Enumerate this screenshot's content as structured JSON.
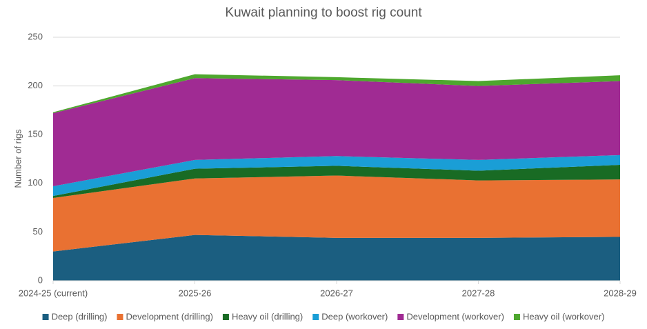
{
  "chart_data": {
    "type": "stacked-area",
    "title": "Kuwait planning to boost rig count",
    "y_label": "Number of rigs",
    "categories": [
      "2024-25 (current)",
      "2025-26",
      "2026-27",
      "2027-28",
      "2028-29"
    ],
    "series": [
      {
        "name": "Deep (drilling)",
        "color": "#1b5e80",
        "values": [
          30,
          47,
          44,
          44,
          45
        ]
      },
      {
        "name": "Development (drilling)",
        "color": "#e97132",
        "values": [
          55,
          58,
          64,
          59,
          59
        ]
      },
      {
        "name": "Heavy oil (drilling)",
        "color": "#196b24",
        "values": [
          2,
          10,
          10,
          10,
          15
        ]
      },
      {
        "name": "Deep (workover)",
        "color": "#1a9ed6",
        "values": [
          10,
          9,
          10,
          11,
          10
        ]
      },
      {
        "name": "Development (workover)",
        "color": "#a02b93",
        "values": [
          75,
          84,
          78,
          76,
          76
        ]
      },
      {
        "name": "Heavy oil (workover)",
        "color": "#4ea72e",
        "values": [
          1,
          4,
          3,
          5,
          6
        ]
      }
    ],
    "ylim": [
      0,
      250
    ],
    "yticks": [
      0,
      50,
      100,
      150,
      200,
      250
    ],
    "grid": true
  }
}
